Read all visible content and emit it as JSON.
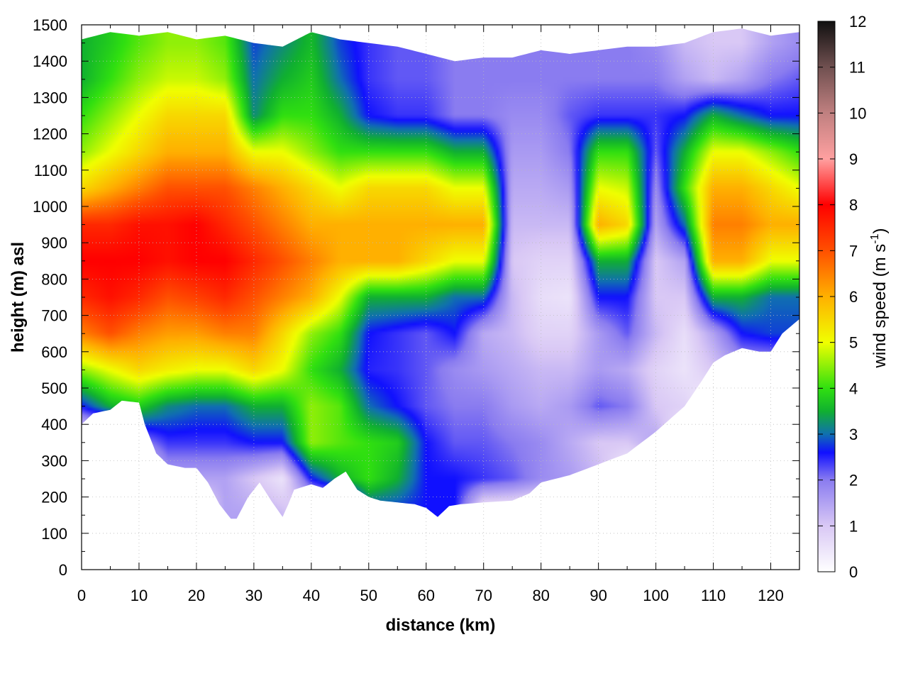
{
  "chart_data": {
    "type": "heatmap",
    "xlabel": "distance (km)",
    "ylabel": "height (m) asl",
    "xlim": [
      0,
      125
    ],
    "ylim": [
      0,
      1500
    ],
    "x_ticks": [
      0,
      10,
      20,
      30,
      40,
      50,
      60,
      70,
      80,
      90,
      100,
      110,
      120
    ],
    "y_ticks": [
      0,
      100,
      200,
      300,
      400,
      500,
      600,
      700,
      800,
      900,
      1000,
      1100,
      1200,
      1300,
      1400,
      1500
    ],
    "grid": true,
    "colorbar": {
      "label_main": "wind speed (m s",
      "label_sup": "-1",
      "label_end": ")",
      "range": [
        0,
        12
      ],
      "ticks": [
        0,
        1,
        2,
        3,
        4,
        5,
        6,
        7,
        8,
        9,
        10,
        11,
        12
      ],
      "stops": [
        {
          "v": 0,
          "c": "#ffffff"
        },
        {
          "v": 1,
          "c": "#d9c8f5"
        },
        {
          "v": 2,
          "c": "#8a7cf0"
        },
        {
          "v": 2.6,
          "c": "#1010ff"
        },
        {
          "v": 3,
          "c": "#1070b0"
        },
        {
          "v": 3.5,
          "c": "#10b030"
        },
        {
          "v": 4,
          "c": "#30e010"
        },
        {
          "v": 5,
          "c": "#f0ff00"
        },
        {
          "v": 6,
          "c": "#ffb000"
        },
        {
          "v": 7,
          "c": "#ff5000"
        },
        {
          "v": 8,
          "c": "#ff0000"
        },
        {
          "v": 9,
          "c": "#ffa0a0"
        },
        {
          "v": 10,
          "c": "#c08080"
        },
        {
          "v": 11,
          "c": "#705050"
        },
        {
          "v": 12,
          "c": "#101010"
        }
      ]
    },
    "ground_height_profile": {
      "x": [
        0,
        2,
        5,
        7,
        10,
        11,
        13,
        15,
        18,
        20,
        22,
        24,
        26,
        27,
        29,
        31,
        33,
        35,
        36,
        37,
        40,
        42,
        44,
        46,
        48,
        50,
        52,
        55,
        58,
        60,
        62,
        64,
        66,
        70,
        75,
        78,
        80,
        85,
        90,
        95,
        100,
        105,
        108,
        110,
        112,
        115,
        118,
        120,
        122,
        125
      ],
      "y": [
        400,
        430,
        440,
        465,
        460,
        400,
        320,
        290,
        280,
        280,
        240,
        180,
        140,
        140,
        200,
        240,
        190,
        145,
        180,
        220,
        235,
        225,
        250,
        270,
        220,
        200,
        190,
        185,
        180,
        170,
        145,
        175,
        180,
        185,
        190,
        210,
        240,
        260,
        290,
        320,
        380,
        450,
        520,
        570,
        590,
        610,
        600,
        600,
        650,
        690
      ]
    },
    "top_height_profile": {
      "x": [
        0,
        5,
        10,
        15,
        20,
        25,
        30,
        35,
        40,
        45,
        50,
        55,
        60,
        65,
        70,
        75,
        80,
        85,
        90,
        95,
        100,
        105,
        110,
        115,
        120,
        125
      ],
      "y": [
        1460,
        1480,
        1470,
        1480,
        1460,
        1470,
        1450,
        1440,
        1480,
        1460,
        1450,
        1440,
        1420,
        1400,
        1410,
        1410,
        1430,
        1420,
        1430,
        1440,
        1440,
        1450,
        1480,
        1490,
        1470,
        1480
      ]
    },
    "wind_speed_grid": {
      "x": [
        0,
        5,
        10,
        15,
        20,
        25,
        30,
        35,
        40,
        45,
        50,
        55,
        60,
        65,
        70,
        75,
        80,
        85,
        90,
        95,
        100,
        105,
        110,
        115,
        120,
        125
      ],
      "y": [
        150,
        250,
        350,
        450,
        550,
        650,
        750,
        850,
        950,
        1050,
        1150,
        1250,
        1350,
        1450
      ],
      "values": [
        [
          0,
          0,
          0,
          0,
          0,
          1.5,
          1.5,
          1.2,
          0,
          0,
          2.6,
          2.6,
          2.6,
          2.6,
          0,
          0,
          0,
          0,
          0,
          0,
          0,
          0,
          0,
          0,
          0,
          0
        ],
        [
          0,
          0,
          0,
          1.5,
          1.5,
          1.5,
          1.0,
          0.5,
          2.6,
          3.5,
          4.0,
          3.5,
          2.6,
          2.6,
          2.4,
          2.2,
          1.8,
          1.6,
          1.2,
          0,
          0,
          0,
          0,
          0,
          0,
          0
        ],
        [
          0,
          0,
          1.8,
          2.4,
          2.4,
          2.4,
          2.6,
          2.6,
          4.5,
          4.2,
          4.0,
          3.8,
          2.6,
          2.2,
          2.2,
          2.0,
          1.8,
          1.4,
          1.0,
          1.0,
          1.5,
          0,
          0,
          0,
          0,
          0
        ],
        [
          2.6,
          3.5,
          3.8,
          3.2,
          3.0,
          3.0,
          3.5,
          3.5,
          4.5,
          4.2,
          3.0,
          2.6,
          2.2,
          2.0,
          2.0,
          1.6,
          1.4,
          1.6,
          2.2,
          2.0,
          1.0,
          0.8,
          0,
          0,
          0,
          0
        ],
        [
          4.5,
          5.0,
          5.5,
          5.2,
          5.0,
          5.0,
          5.5,
          5.0,
          4.0,
          3.5,
          2.5,
          2.4,
          2.2,
          1.8,
          1.6,
          1.4,
          1.2,
          1.2,
          1.6,
          1.4,
          0.8,
          0.5,
          1.0,
          1.5,
          1.5,
          1.5
        ],
        [
          6.5,
          7.0,
          6.5,
          6.2,
          6.2,
          6.5,
          6.5,
          5.5,
          4.5,
          4.0,
          2.6,
          2.4,
          2.2,
          2.6,
          1.4,
          1.2,
          0.8,
          0.8,
          1.6,
          2.2,
          1.2,
          0.6,
          1.5,
          2.6,
          2.8,
          2.8
        ],
        [
          7.5,
          7.8,
          7.5,
          7.0,
          7.2,
          7.5,
          7.0,
          6.5,
          6.0,
          5.0,
          3.5,
          3.5,
          3.5,
          3.0,
          3.0,
          1.2,
          0.6,
          0.5,
          2.6,
          2.6,
          1.0,
          1.0,
          3.5,
          3.5,
          3.0,
          3.0
        ],
        [
          8.0,
          8.0,
          8.0,
          7.8,
          8.0,
          8.0,
          7.5,
          7.0,
          6.5,
          6.0,
          6.0,
          6.0,
          5.5,
          5.0,
          5.0,
          1.0,
          0.8,
          0.8,
          3.5,
          3.5,
          1.0,
          1.5,
          6.0,
          6.0,
          5.0,
          5.0
        ],
        [
          7.5,
          7.5,
          7.8,
          7.8,
          8.0,
          7.5,
          7.0,
          6.5,
          6.0,
          6.0,
          6.0,
          6.0,
          6.0,
          6.0,
          6.0,
          1.2,
          1.2,
          1.2,
          6.0,
          5.5,
          1.5,
          3.0,
          6.5,
          6.5,
          6.0,
          6.0
        ],
        [
          5.5,
          6.0,
          6.5,
          7.0,
          7.0,
          7.0,
          6.5,
          6.0,
          5.5,
          5.0,
          5.5,
          5.5,
          5.5,
          5.0,
          5.0,
          1.4,
          1.4,
          1.6,
          5.0,
          4.8,
          1.8,
          4.0,
          6.0,
          6.0,
          5.5,
          5.0
        ],
        [
          4.5,
          5.0,
          5.5,
          6.0,
          6.0,
          6.0,
          5.0,
          5.0,
          4.5,
          4.0,
          4.0,
          4.0,
          4.0,
          3.5,
          3.5,
          1.6,
          1.6,
          2.0,
          4.0,
          4.0,
          2.2,
          3.5,
          5.0,
          5.0,
          4.5,
          4.0
        ],
        [
          4.0,
          4.5,
          5.0,
          5.5,
          5.5,
          5.5,
          3.2,
          4.0,
          4.0,
          3.5,
          2.6,
          2.4,
          2.4,
          2.0,
          2.0,
          1.8,
          1.8,
          2.2,
          2.4,
          2.4,
          2.4,
          2.6,
          3.5,
          3.0,
          2.6,
          2.6
        ],
        [
          3.5,
          4.0,
          4.5,
          4.8,
          4.8,
          4.5,
          3.0,
          3.5,
          3.8,
          3.0,
          2.4,
          2.2,
          2.2,
          2.0,
          2.0,
          2.0,
          2.0,
          2.0,
          2.0,
          2.0,
          2.0,
          1.5,
          1.2,
          1.5,
          2.0,
          2.2
        ],
        [
          3.5,
          3.8,
          4.2,
          4.5,
          4.5,
          4.2,
          2.8,
          3.2,
          3.6,
          2.8,
          2.4,
          2.2,
          2.2,
          2.0,
          2.0,
          2.0,
          2.0,
          2.0,
          2.0,
          2.0,
          1.8,
          1.2,
          1.0,
          1.0,
          1.5,
          1.8
        ]
      ]
    }
  }
}
